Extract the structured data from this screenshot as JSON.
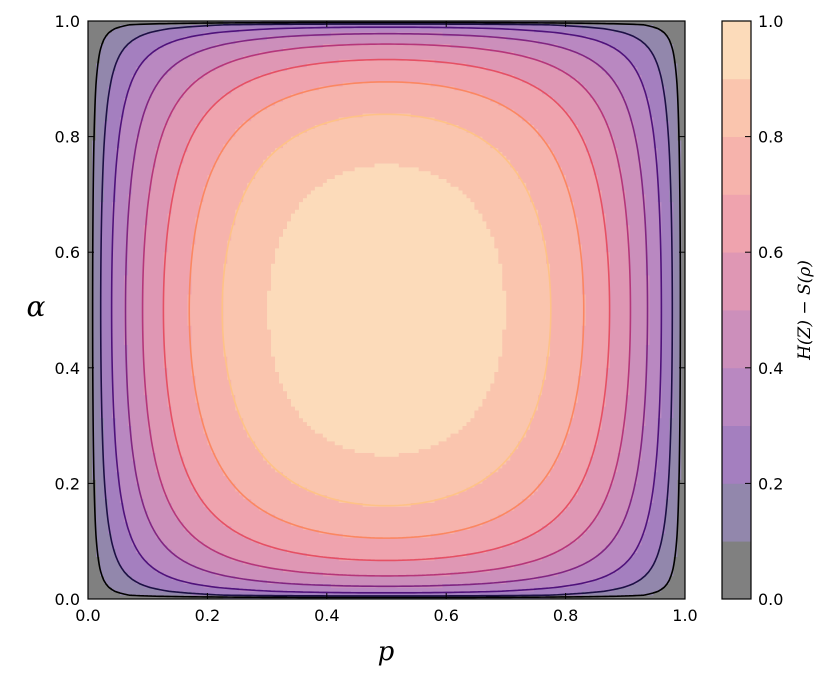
{
  "chart_data": {
    "type": "contour",
    "function": "H(Z) - S(rho)",
    "xlabel": "p",
    "ylabel": "α",
    "colorbar_label": "H(Z) − S(ρ)",
    "xlim": [
      0.0,
      1.0
    ],
    "ylim": [
      0.0,
      1.0
    ],
    "x_ticks": [
      "0.0",
      "0.2",
      "0.4",
      "0.6",
      "0.8",
      "1.0"
    ],
    "y_ticks": [
      "0.0",
      "0.2",
      "0.4",
      "0.6",
      "0.8",
      "1.0"
    ],
    "colorbar_ticks": [
      "0.0",
      "0.2",
      "0.4",
      "0.6",
      "0.8",
      "1.0"
    ],
    "colorbar_range": [
      0.0,
      1.0
    ],
    "levels": [
      0.0,
      0.1,
      0.2,
      0.3,
      0.4,
      0.5,
      0.6,
      0.7,
      0.8,
      0.9,
      1.0
    ],
    "fill_colors": [
      "#808080",
      "#9287ac",
      "#a47fbf",
      "#b988c1",
      "#cc8fbb",
      "#df97b4",
      "#efa3ae",
      "#f6b3ac",
      "#fac5ae",
      "#fcdbba",
      "#fff4d6"
    ],
    "line_colors": [
      "#000000",
      "#1c1044",
      "#4f127b",
      "#812581",
      "#b5367a",
      "#e55064",
      "#fb8761",
      "#fec287"
    ],
    "grid": false,
    "colorbar_position": "right"
  }
}
